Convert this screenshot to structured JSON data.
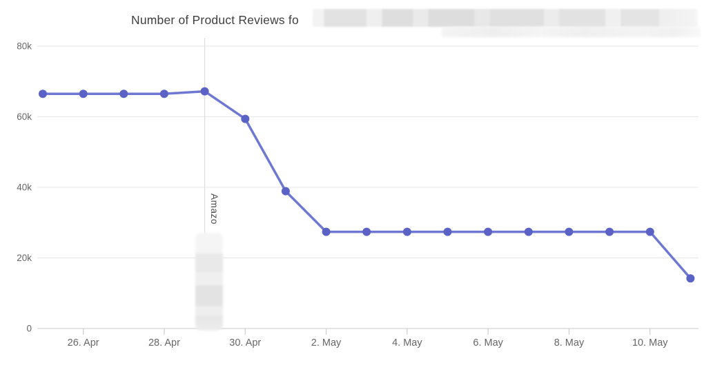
{
  "title": {
    "text_visible": "Number of Product Reviews fo",
    "redacted_remainder": true
  },
  "annotation": {
    "visible_text": "Amazo",
    "position_date": "29. Apr",
    "redacted_below": true
  },
  "colors": {
    "background": "#ffffff",
    "line": "#6e78d2",
    "marker": "#5a62c6",
    "grid": "#e9e9e9",
    "axis_line": "#d4d4d4",
    "tick": "#cccccc",
    "axis_label": "#666666",
    "title_text": "#3f3f3f",
    "annotation_line": "#dddddd",
    "annotation_text": "#4a4a4a"
  },
  "chart_data": {
    "type": "line",
    "title": "Number of Product Reviews fo",
    "xlabel": "",
    "ylabel": "",
    "legend": "none",
    "grid": "horizontal-only",
    "x": [
      "25. Apr",
      "26. Apr",
      "27. Apr",
      "28. Apr",
      "29. Apr",
      "30. Apr",
      "1. May",
      "2. May",
      "3. May",
      "4. May",
      "5. May",
      "6. May",
      "7. May",
      "8. May",
      "9. May",
      "10. May",
      "11. May"
    ],
    "values": [
      66500,
      66500,
      66500,
      66500,
      67200,
      59400,
      38900,
      27400,
      27400,
      27400,
      27400,
      27400,
      27400,
      27400,
      27400,
      27400,
      14200
    ],
    "xtick_labels": [
      "26. Apr",
      "28. Apr",
      "30. Apr",
      "2. May",
      "4. May",
      "6. May",
      "8. May",
      "10. May"
    ],
    "yticks": [
      {
        "value": 0,
        "label": "0"
      },
      {
        "value": 20000,
        "label": "20k"
      },
      {
        "value": 40000,
        "label": "40k"
      },
      {
        "value": 60000,
        "label": "60k"
      },
      {
        "value": 80000,
        "label": "80k"
      }
    ],
    "ylim": [
      0,
      82300
    ],
    "annotation": {
      "x": "29. Apr",
      "label_visible": "Amazo"
    }
  }
}
